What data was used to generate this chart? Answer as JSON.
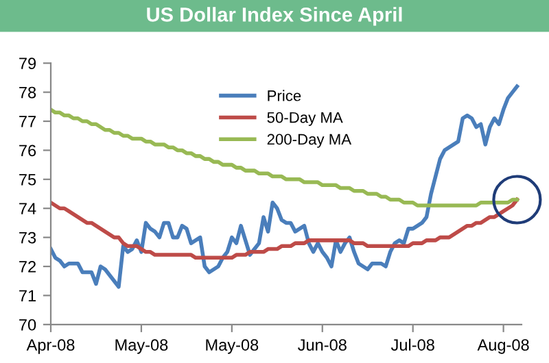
{
  "chart_data": {
    "type": "line",
    "title": "US Dollar Index Since April",
    "categories": [
      "Apr-08",
      null,
      null,
      null,
      null,
      null,
      null,
      null,
      null,
      null,
      null,
      null,
      null,
      null,
      null,
      null,
      null,
      null,
      null,
      null,
      "May-08",
      null,
      null,
      null,
      null,
      null,
      null,
      null,
      null,
      null,
      null,
      null,
      null,
      null,
      null,
      null,
      null,
      null,
      null,
      null,
      "May-08",
      null,
      null,
      null,
      null,
      null,
      null,
      null,
      null,
      null,
      null,
      null,
      null,
      null,
      null,
      null,
      null,
      null,
      null,
      null,
      "Jun-08",
      null,
      null,
      null,
      null,
      null,
      null,
      null,
      null,
      null,
      null,
      null,
      null,
      null,
      null,
      null,
      null,
      null,
      null,
      null,
      "Jul-08",
      null,
      null,
      null,
      null,
      null,
      null,
      null,
      null,
      null,
      null,
      null,
      null,
      null,
      null,
      null,
      null,
      null,
      null,
      null,
      "Aug-08",
      null,
      null,
      null
    ],
    "ylim": [
      70,
      79
    ],
    "yticks": [
      70,
      71,
      72,
      73,
      74,
      75,
      76,
      77,
      78,
      79
    ],
    "legend": "top",
    "line_style": "solid",
    "series": [
      {
        "name": "Price",
        "color": "#4a7ebb",
        "values": [
          72.6,
          72.3,
          72.2,
          72.0,
          72.1,
          72.1,
          72.1,
          71.8,
          71.8,
          71.8,
          71.4,
          72.0,
          71.9,
          71.7,
          71.5,
          71.3,
          72.7,
          72.5,
          72.6,
          72.9,
          72.5,
          73.5,
          73.3,
          73.2,
          73.0,
          73.5,
          73.5,
          73.0,
          73.0,
          73.4,
          73.3,
          72.8,
          72.9,
          73.0,
          72.0,
          71.8,
          71.9,
          72.0,
          72.3,
          72.5,
          73.0,
          72.8,
          73.4,
          72.9,
          72.4,
          72.6,
          72.8,
          73.7,
          73.2,
          74.2,
          74.0,
          73.6,
          73.5,
          73.5,
          73.2,
          73.3,
          73.4,
          72.8,
          72.5,
          72.8,
          72.5,
          72.3,
          72.0,
          72.9,
          72.5,
          72.8,
          73.0,
          72.5,
          72.1,
          72.0,
          71.9,
          72.1,
          72.1,
          72.1,
          72.0,
          72.5,
          72.8,
          72.9,
          72.8,
          73.3,
          73.3,
          73.4,
          73.5,
          73.7,
          74.5,
          75.1,
          75.7,
          76.0,
          76.1,
          76.2,
          76.3,
          77.1,
          77.2,
          77.1,
          76.8,
          76.9,
          76.2,
          76.8,
          77.1,
          76.9,
          77.4,
          77.8,
          78.0,
          78.2
        ]
      },
      {
        "name": "50-Day MA",
        "color": "#be4b48",
        "values": [
          74.2,
          74.1,
          74.0,
          74.0,
          73.9,
          73.8,
          73.7,
          73.6,
          73.5,
          73.5,
          73.4,
          73.3,
          73.2,
          73.1,
          73.0,
          73.0,
          72.8,
          72.7,
          72.7,
          72.7,
          72.6,
          72.5,
          72.5,
          72.4,
          72.4,
          72.4,
          72.4,
          72.4,
          72.4,
          72.4,
          72.4,
          72.4,
          72.3,
          72.3,
          72.3,
          72.3,
          72.3,
          72.3,
          72.3,
          72.3,
          72.3,
          72.4,
          72.4,
          72.4,
          72.5,
          72.5,
          72.5,
          72.5,
          72.6,
          72.6,
          72.6,
          72.7,
          72.7,
          72.7,
          72.8,
          72.8,
          72.8,
          72.9,
          72.9,
          72.9,
          72.9,
          72.9,
          72.9,
          72.9,
          72.9,
          72.9,
          72.9,
          72.8,
          72.8,
          72.8,
          72.7,
          72.7,
          72.7,
          72.7,
          72.7,
          72.7,
          72.7,
          72.7,
          72.7,
          72.7,
          72.8,
          72.8,
          72.8,
          72.9,
          72.9,
          72.9,
          73.0,
          73.0,
          73.0,
          73.1,
          73.2,
          73.3,
          73.4,
          73.4,
          73.5,
          73.5,
          73.6,
          73.7,
          73.7,
          73.8,
          73.9,
          74.0,
          74.1,
          74.3
        ]
      },
      {
        "name": "200-Day MA",
        "color": "#98b954",
        "values": [
          77.4,
          77.3,
          77.3,
          77.2,
          77.2,
          77.1,
          77.1,
          77.0,
          77.0,
          76.9,
          76.9,
          76.8,
          76.7,
          76.7,
          76.6,
          76.6,
          76.5,
          76.5,
          76.4,
          76.4,
          76.4,
          76.3,
          76.3,
          76.2,
          76.2,
          76.2,
          76.1,
          76.1,
          76.0,
          76.0,
          75.9,
          75.9,
          75.8,
          75.8,
          75.7,
          75.7,
          75.6,
          75.6,
          75.5,
          75.5,
          75.5,
          75.4,
          75.4,
          75.3,
          75.3,
          75.3,
          75.2,
          75.2,
          75.2,
          75.1,
          75.1,
          75.1,
          75.0,
          75.0,
          75.0,
          75.0,
          74.9,
          74.9,
          74.9,
          74.9,
          74.8,
          74.8,
          74.8,
          74.8,
          74.7,
          74.7,
          74.7,
          74.6,
          74.6,
          74.6,
          74.5,
          74.5,
          74.5,
          74.4,
          74.4,
          74.3,
          74.3,
          74.3,
          74.2,
          74.2,
          74.2,
          74.1,
          74.1,
          74.1,
          74.1,
          74.1,
          74.1,
          74.1,
          74.1,
          74.1,
          74.1,
          74.1,
          74.1,
          74.1,
          74.1,
          74.2,
          74.2,
          74.2,
          74.2,
          74.2,
          74.2,
          74.2,
          74.3,
          74.3
        ]
      }
    ]
  }
}
